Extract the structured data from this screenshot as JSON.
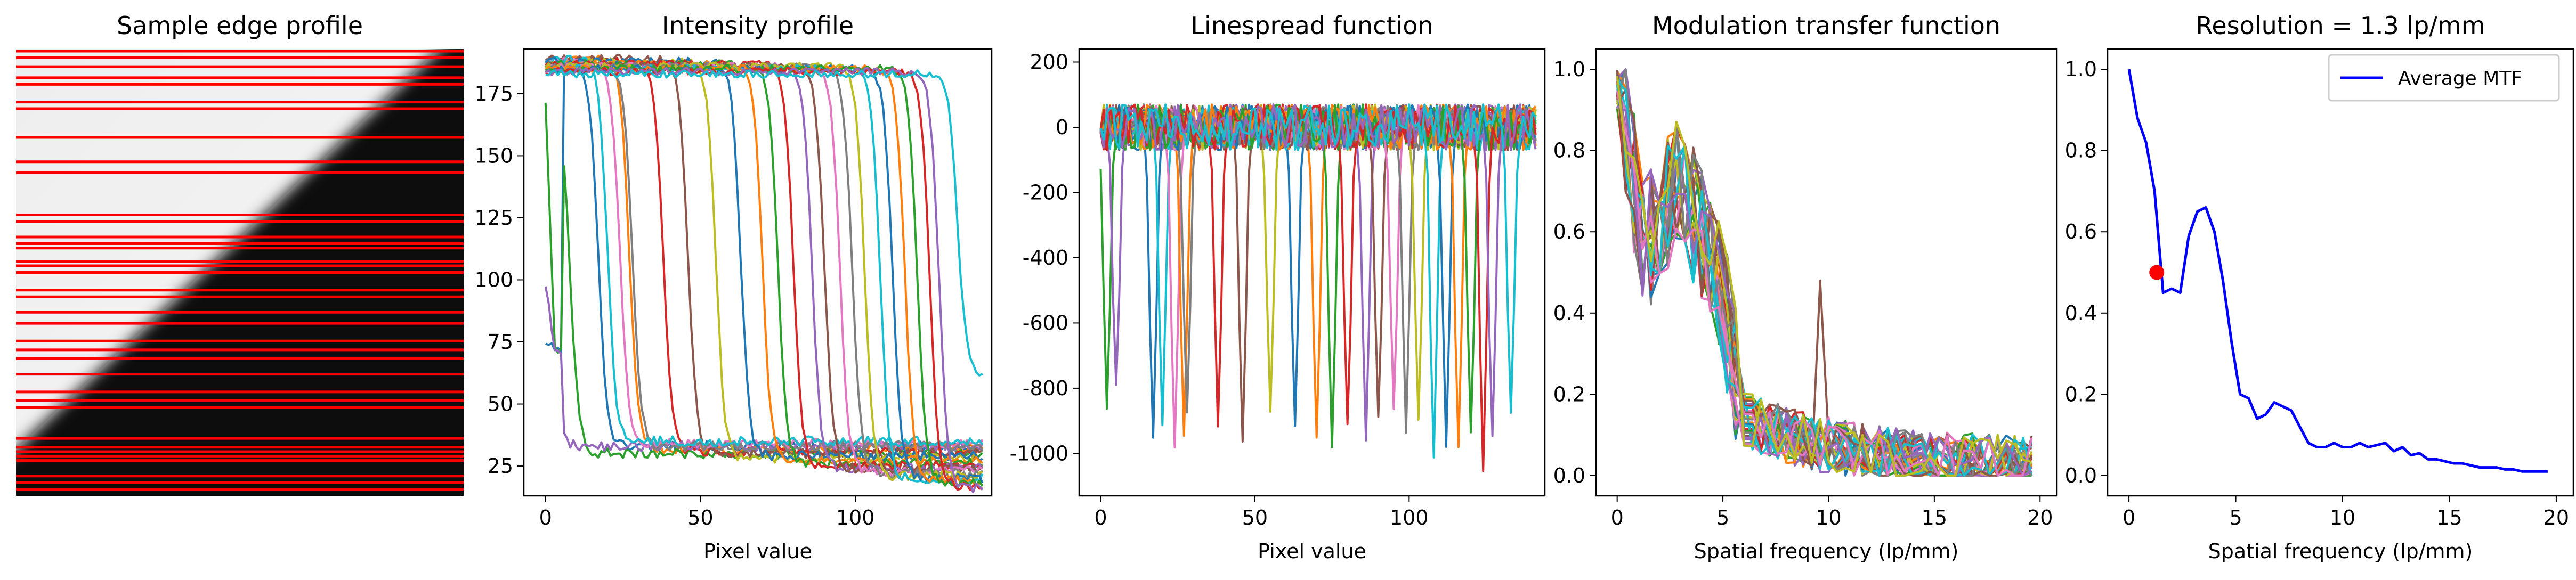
{
  "chart_data": [
    {
      "id": "edge",
      "type": "image",
      "title": "Sample edge profile",
      "image": {
        "description_colors": {
          "bright": "#f2f2f2",
          "dark": "#0f0f0f",
          "line": "#ff0000"
        },
        "line_rows_fraction": [
          0.0,
          0.015,
          0.035,
          0.06,
          0.075,
          0.115,
          0.13,
          0.195,
          0.25,
          0.275,
          0.37,
          0.385,
          0.42,
          0.435,
          0.445,
          0.475,
          0.485,
          0.5,
          0.54,
          0.555,
          0.59,
          0.615,
          0.655,
          0.675,
          0.695,
          0.73,
          0.77,
          0.79,
          0.805,
          0.875,
          0.895,
          0.905,
          0.915,
          0.925,
          0.96,
          0.975,
          0.99
        ]
      }
    },
    {
      "id": "intensity",
      "type": "line",
      "title": "Intensity profile",
      "xlabel": "Pixel value",
      "ylabel": "",
      "xlim": [
        -7,
        144
      ],
      "ylim": [
        13,
        193
      ],
      "xticks": [
        0,
        50,
        100
      ],
      "yticks": [
        25,
        50,
        75,
        100,
        125,
        150,
        175
      ],
      "series_model": "sigmoid step from high to low level at an edge position",
      "series": [
        {
          "color": "#1f77b4",
          "edge": 17,
          "high": 188,
          "low": 33,
          "start_low": 75
        },
        {
          "color": "#ff7f0e",
          "edge": 27,
          "high": 189,
          "low": 32
        },
        {
          "color": "#2ca02c",
          "edge": 8,
          "high": 172,
          "low": 30,
          "start_low": 172
        },
        {
          "color": "#d62728",
          "edge": 38,
          "high": 188,
          "low": 31
        },
        {
          "color": "#9467bd",
          "edge": 2,
          "high": 98,
          "low": 33,
          "start_low": 98
        },
        {
          "color": "#8c564b",
          "edge": 46,
          "high": 189,
          "low": 30
        },
        {
          "color": "#e377c2",
          "edge": 24,
          "high": 188,
          "low": 34
        },
        {
          "color": "#7f7f7f",
          "edge": 28,
          "high": 187,
          "low": 33
        },
        {
          "color": "#bcbd22",
          "edge": 55,
          "high": 188,
          "low": 28
        },
        {
          "color": "#17becf",
          "edge": 20,
          "high": 189,
          "low": 35
        },
        {
          "color": "#1f77b4",
          "edge": 63,
          "high": 188,
          "low": 29
        },
        {
          "color": "#ff7f0e",
          "edge": 70,
          "high": 187,
          "low": 27
        },
        {
          "color": "#2ca02c",
          "edge": 75,
          "high": 187,
          "low": 26
        },
        {
          "color": "#d62728",
          "edge": 80,
          "high": 187,
          "low": 25
        },
        {
          "color": "#9467bd",
          "edge": 86,
          "high": 186,
          "low": 24
        },
        {
          "color": "#8c564b",
          "edge": 90,
          "high": 186,
          "low": 24
        },
        {
          "color": "#e377c2",
          "edge": 95,
          "high": 186,
          "low": 23
        },
        {
          "color": "#7f7f7f",
          "edge": 99,
          "high": 186,
          "low": 22
        },
        {
          "color": "#bcbd22",
          "edge": 103,
          "high": 186,
          "low": 21
        },
        {
          "color": "#17becf",
          "edge": 108,
          "high": 185,
          "low": 20
        },
        {
          "color": "#1f77b4",
          "edge": 112,
          "high": 185,
          "low": 20
        },
        {
          "color": "#ff7f0e",
          "edge": 116,
          "high": 185,
          "low": 19
        },
        {
          "color": "#2ca02c",
          "edge": 120,
          "high": 185,
          "low": 18
        },
        {
          "color": "#d62728",
          "edge": 124,
          "high": 184,
          "low": 17
        },
        {
          "color": "#9467bd",
          "edge": 127,
          "high": 184,
          "low": 16
        },
        {
          "color": "#17becf",
          "edge": 133,
          "high": 183,
          "low": 62
        }
      ]
    },
    {
      "id": "lsf",
      "type": "line",
      "title": "Linespread function",
      "xlabel": "Pixel value",
      "ylabel": "",
      "xlim": [
        -7,
        144
      ],
      "ylim": [
        -1130,
        240
      ],
      "xticks": [
        0,
        50,
        100
      ],
      "yticks": [
        200,
        0,
        -200,
        -400,
        -600,
        -800,
        -1000
      ],
      "series_model": "noisy baseline near 0 with a negative dip at each edge position",
      "dips": [
        {
          "color": "#2ca02c",
          "x": 2,
          "depth": -850
        },
        {
          "color": "#9467bd",
          "x": 5,
          "depth": -800
        },
        {
          "color": "#1f77b4",
          "x": 17,
          "depth": -960
        },
        {
          "color": "#17becf",
          "x": 20,
          "depth": -900
        },
        {
          "color": "#e377c2",
          "x": 24,
          "depth": -1000
        },
        {
          "color": "#ff7f0e",
          "x": 27,
          "depth": -930
        },
        {
          "color": "#7f7f7f",
          "x": 28,
          "depth": -870
        },
        {
          "color": "#d62728",
          "x": 38,
          "depth": -900
        },
        {
          "color": "#8c564b",
          "x": 46,
          "depth": -960
        },
        {
          "color": "#bcbd22",
          "x": 55,
          "depth": -870
        },
        {
          "color": "#1f77b4",
          "x": 63,
          "depth": -900
        },
        {
          "color": "#ff7f0e",
          "x": 70,
          "depth": -960
        },
        {
          "color": "#2ca02c",
          "x": 75,
          "depth": -1000
        },
        {
          "color": "#d62728",
          "x": 80,
          "depth": -930
        },
        {
          "color": "#9467bd",
          "x": 86,
          "depth": -960
        },
        {
          "color": "#8c564b",
          "x": 90,
          "depth": -900
        },
        {
          "color": "#e377c2",
          "x": 95,
          "depth": -870
        },
        {
          "color": "#7f7f7f",
          "x": 99,
          "depth": -930
        },
        {
          "color": "#bcbd22",
          "x": 103,
          "depth": -900
        },
        {
          "color": "#17becf",
          "x": 108,
          "depth": -1000
        },
        {
          "color": "#1f77b4",
          "x": 112,
          "depth": -960
        },
        {
          "color": "#ff7f0e",
          "x": 116,
          "depth": -1000
        },
        {
          "color": "#2ca02c",
          "x": 120,
          "depth": -930
        },
        {
          "color": "#d62728",
          "x": 124,
          "depth": -1060
        },
        {
          "color": "#9467bd",
          "x": 127,
          "depth": -960
        },
        {
          "color": "#17becf",
          "x": 133,
          "depth": -870
        }
      ]
    },
    {
      "id": "mtf",
      "type": "line",
      "title": "Modulation transfer function",
      "xlabel": "Spatial frequency (lp/mm)",
      "ylabel": "",
      "xlim": [
        -1,
        20.8
      ],
      "ylim": [
        -0.05,
        1.05
      ],
      "xticks": [
        0,
        5,
        10,
        15,
        20
      ],
      "yticks": [
        0.0,
        0.2,
        0.4,
        0.6,
        0.8,
        1.0
      ],
      "series_model": "noisy MTF curves, one per edge line",
      "colors": [
        "#1f77b4",
        "#ff7f0e",
        "#2ca02c",
        "#d62728",
        "#9467bd",
        "#8c564b",
        "#e377c2",
        "#7f7f7f",
        "#bcbd22",
        "#17becf",
        "#1f77b4",
        "#ff7f0e",
        "#2ca02c",
        "#d62728",
        "#9467bd",
        "#8c564b",
        "#e377c2",
        "#7f7f7f",
        "#bcbd22",
        "#17becf",
        "#8c564b",
        "#7f7f7f",
        "#17becf",
        "#9467bd",
        "#e377c2",
        "#bcbd22"
      ]
    },
    {
      "id": "avg",
      "type": "line",
      "title": "Resolution = 1.3 lp/mm",
      "xlabel": "Spatial frequency (lp/mm)",
      "ylabel": "",
      "xlim": [
        -1,
        20.8
      ],
      "ylim": [
        -0.05,
        1.05
      ],
      "xticks": [
        0,
        5,
        10,
        15,
        20
      ],
      "yticks": [
        0.0,
        0.2,
        0.4,
        0.6,
        0.8,
        1.0
      ],
      "legend": {
        "label": "Average MTF",
        "placement": "top-right"
      },
      "series": [
        {
          "name": "Average MTF",
          "color": "#0000ff",
          "x": [
            0,
            0.4,
            0.8,
            1.2,
            1.6,
            2.0,
            2.4,
            2.8,
            3.2,
            3.6,
            4.0,
            4.4,
            4.8,
            5.2,
            5.6,
            6.0,
            6.4,
            6.8,
            7.2,
            7.6,
            8.0,
            8.4,
            8.8,
            9.2,
            9.6,
            10.0,
            10.4,
            10.8,
            11.2,
            11.6,
            12.0,
            12.4,
            12.8,
            13.2,
            13.6,
            14.0,
            14.4,
            14.8,
            15.2,
            15.6,
            16.0,
            16.4,
            16.8,
            17.2,
            17.6,
            18.0,
            18.4,
            18.8,
            19.2,
            19.6
          ],
          "y": [
            1.0,
            0.88,
            0.82,
            0.7,
            0.45,
            0.46,
            0.45,
            0.59,
            0.65,
            0.66,
            0.6,
            0.48,
            0.33,
            0.2,
            0.19,
            0.14,
            0.15,
            0.18,
            0.17,
            0.16,
            0.12,
            0.08,
            0.07,
            0.07,
            0.08,
            0.07,
            0.07,
            0.08,
            0.07,
            0.075,
            0.08,
            0.06,
            0.07,
            0.05,
            0.055,
            0.04,
            0.04,
            0.035,
            0.03,
            0.03,
            0.025,
            0.02,
            0.02,
            0.02,
            0.015,
            0.015,
            0.01,
            0.01,
            0.01,
            0.01
          ]
        }
      ],
      "marker": {
        "x": 1.3,
        "y": 0.5,
        "color": "#ff0000"
      }
    }
  ]
}
